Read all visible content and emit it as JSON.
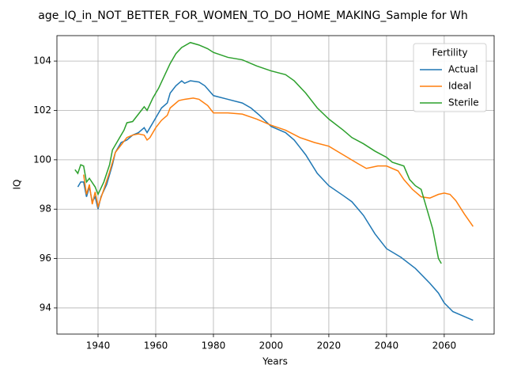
{
  "chart_data": {
    "type": "line",
    "title": "age_IQ_in_NOT_BETTER_FOR_WOMEN_TO_DO_HOME_MAKING_Sample for Wh",
    "xlabel": "Years",
    "ylabel": "IQ",
    "legend_title": "Fertility",
    "legend": "upper right",
    "grid": true,
    "xlim": [
      1925.75,
      2077.3
    ],
    "ylim": [
      92.94,
      105.03
    ],
    "xticks": [
      1940,
      1960,
      1980,
      2000,
      2020,
      2040,
      2060
    ],
    "yticks": [
      94,
      96,
      98,
      100,
      102,
      104
    ],
    "series": [
      {
        "name": "Actual",
        "color": "#1f77b4",
        "x": [
          1933,
          1934,
          1935,
          1936,
          1937,
          1938,
          1939,
          1940,
          1941,
          1943,
          1945,
          1946,
          1948,
          1950,
          1952,
          1954,
          1956,
          1957,
          1958,
          1960,
          1962,
          1964,
          1965,
          1967,
          1969,
          1970,
          1972,
          1975,
          1977,
          1980,
          1985,
          1990,
          1993,
          1996,
          2000,
          2005,
          2008,
          2012,
          2016,
          2020,
          2025,
          2028,
          2032,
          2036,
          2040,
          2045,
          2050,
          2055,
          2058,
          2060,
          2063,
          2066,
          2070
        ],
        "values": [
          98.9,
          99.1,
          99.1,
          98.5,
          98.9,
          98.3,
          98.5,
          98.0,
          98.5,
          99.0,
          99.8,
          100.3,
          100.7,
          100.8,
          101.0,
          101.1,
          101.3,
          101.1,
          101.3,
          101.7,
          102.1,
          102.3,
          102.7,
          103.0,
          103.2,
          103.1,
          103.2,
          103.15,
          103.0,
          102.6,
          102.45,
          102.3,
          102.1,
          101.8,
          101.35,
          101.1,
          100.8,
          100.2,
          99.45,
          98.95,
          98.55,
          98.3,
          97.75,
          97.0,
          96.4,
          96.05,
          95.6,
          95.0,
          94.6,
          94.2,
          93.85,
          93.7,
          93.5
        ]
      },
      {
        "name": "Ideal",
        "color": "#ff7f0e",
        "x": [
          1935,
          1936,
          1937,
          1938,
          1939,
          1940,
          1942,
          1944,
          1946,
          1948,
          1950,
          1952,
          1954,
          1956,
          1957,
          1958,
          1960,
          1962,
          1964,
          1965,
          1968,
          1970,
          1973,
          1975,
          1978,
          1980,
          1985,
          1990,
          1995,
          2000,
          2005,
          2010,
          2015,
          2020,
          2025,
          2030,
          2033,
          2037,
          2040,
          2044,
          2046,
          2049,
          2052,
          2055,
          2058,
          2060,
          2062,
          2064,
          2067,
          2070
        ],
        "values": [
          99.4,
          98.6,
          99.0,
          98.2,
          98.7,
          98.1,
          98.8,
          99.5,
          100.3,
          100.6,
          100.9,
          101.0,
          101.05,
          101.0,
          100.8,
          100.9,
          101.3,
          101.6,
          101.8,
          102.1,
          102.4,
          102.45,
          102.5,
          102.45,
          102.2,
          101.9,
          101.9,
          101.85,
          101.65,
          101.4,
          101.2,
          100.9,
          100.7,
          100.55,
          100.2,
          99.85,
          99.65,
          99.75,
          99.75,
          99.55,
          99.2,
          98.8,
          98.5,
          98.45,
          98.6,
          98.65,
          98.6,
          98.35,
          97.8,
          97.3
        ]
      },
      {
        "name": "Sterile",
        "color": "#2ca02c",
        "x": [
          1932,
          1933,
          1934,
          1935,
          1936,
          1937,
          1939,
          1940,
          1942,
          1944,
          1945,
          1947,
          1949,
          1950,
          1952,
          1955,
          1956,
          1957,
          1959,
          1961,
          1963,
          1965,
          1967,
          1969,
          1972,
          1975,
          1978,
          1980,
          1985,
          1990,
          1995,
          2000,
          2005,
          2008,
          2012,
          2016,
          2020,
          2025,
          2028,
          2032,
          2036,
          2040,
          2042,
          2046,
          2048,
          2050,
          2052,
          2054,
          2056,
          2058,
          2059
        ],
        "values": [
          99.6,
          99.45,
          99.8,
          99.75,
          99.1,
          99.25,
          98.9,
          98.6,
          99.1,
          99.8,
          100.4,
          100.8,
          101.2,
          101.5,
          101.55,
          102.0,
          102.15,
          102.0,
          102.5,
          102.9,
          103.4,
          103.9,
          104.3,
          104.55,
          104.75,
          104.65,
          104.5,
          104.35,
          104.15,
          104.05,
          103.8,
          103.6,
          103.45,
          103.2,
          102.7,
          102.1,
          101.65,
          101.2,
          100.9,
          100.65,
          100.35,
          100.1,
          99.9,
          99.75,
          99.2,
          98.95,
          98.8,
          98.0,
          97.2,
          96.0,
          95.8
        ]
      }
    ]
  }
}
